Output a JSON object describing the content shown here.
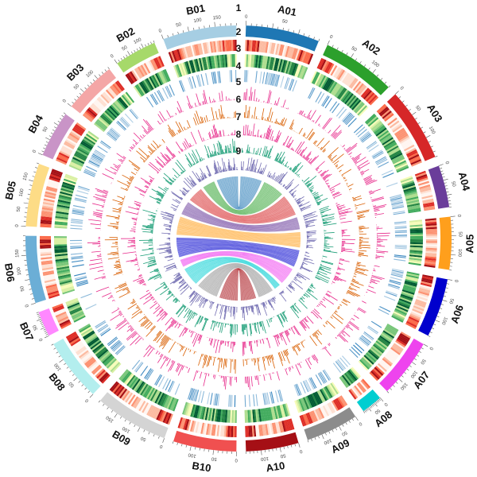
{
  "figure": {
    "type": "circos",
    "description_tracks": [
      "1",
      "2",
      "3",
      "4",
      "5",
      "6",
      "7",
      "8",
      "9"
    ]
  },
  "chromosomes": [
    {
      "id": "A01",
      "label": "A01",
      "size": 35,
      "color": "#1f77b4",
      "ticks": [
        0,
        50
      ]
    },
    {
      "id": "A02",
      "label": "A02",
      "size": 35,
      "color": "#2ca02c",
      "ticks": [
        0,
        50,
        100
      ]
    },
    {
      "id": "A03",
      "label": "A03",
      "size": 35,
      "color": "#d62728",
      "ticks": [
        0,
        50,
        100
      ]
    },
    {
      "id": "A04",
      "label": "A04",
      "size": 20,
      "color": "#6a3d9a",
      "ticks": [
        0,
        50
      ]
    },
    {
      "id": "A05",
      "label": "A05",
      "size": 25,
      "color": "#ff9f1c",
      "ticks": [
        0,
        50,
        100
      ]
    },
    {
      "id": "A06",
      "label": "A06",
      "size": 28,
      "color": "#0000cd",
      "ticks": [
        0,
        50,
        100
      ]
    },
    {
      "id": "A07",
      "label": "A07",
      "size": 28,
      "color": "#ee44ee",
      "ticks": [
        0,
        50,
        100,
        150
      ]
    },
    {
      "id": "A08",
      "label": "A08",
      "size": 10,
      "color": "#00ced1",
      "ticks": [
        0,
        50
      ]
    },
    {
      "id": "A09",
      "label": "A09",
      "size": 25,
      "color": "#8c8c8c",
      "ticks": [
        0,
        50,
        100
      ]
    },
    {
      "id": "A10",
      "label": "A10",
      "size": 25,
      "color": "#a50f15",
      "ticks": [
        0,
        50,
        100
      ]
    },
    {
      "id": "B10",
      "label": "B10",
      "size": 30,
      "color": "#f05050",
      "ticks": [
        0,
        50,
        100
      ]
    },
    {
      "id": "B09",
      "label": "B09",
      "size": 35,
      "color": "#d4d4d4",
      "ticks": [
        0,
        50,
        100,
        150
      ]
    },
    {
      "id": "B08",
      "label": "B08",
      "size": 30,
      "color": "#b3eeee",
      "ticks": [
        0,
        50,
        100
      ]
    },
    {
      "id": "B07",
      "label": "B07",
      "size": 12,
      "color": "#ff88ff",
      "ticks": [
        0,
        50
      ]
    },
    {
      "id": "B06",
      "label": "B06",
      "size": 32,
      "color": "#6baed6",
      "ticks": [
        0,
        50,
        100,
        150
      ]
    },
    {
      "id": "B05",
      "label": "B05",
      "size": 30,
      "color": "#fddc86",
      "ticks": [
        0,
        50,
        100,
        150
      ]
    },
    {
      "id": "B04",
      "label": "B04",
      "size": 22,
      "color": "#c994c7",
      "ticks": [
        0,
        50
      ]
    },
    {
      "id": "B03",
      "label": "B03",
      "size": 25,
      "color": "#f4a6a6",
      "ticks": [
        0,
        50,
        100
      ]
    },
    {
      "id": "B02",
      "label": "B02",
      "size": 20,
      "color": "#a6d96a",
      "ticks": [
        0,
        50,
        100
      ]
    },
    {
      "id": "B01",
      "label": "B01",
      "size": 35,
      "color": "#a6cee3",
      "ticks": [
        0,
        50,
        100,
        150
      ]
    }
  ],
  "tracks": [
    {
      "id": "2",
      "kind": "heatmap",
      "palette": "reds"
    },
    {
      "id": "3",
      "kind": "heatmap",
      "palette": "greens"
    },
    {
      "id": "4",
      "kind": "barcode",
      "color": "#3182bd"
    },
    {
      "id": "5",
      "kind": "histogram",
      "color": "#e7298a"
    },
    {
      "id": "6",
      "kind": "histogram",
      "color": "#d95f02"
    },
    {
      "id": "7",
      "kind": "histogram",
      "color": "#e7298a"
    },
    {
      "id": "8",
      "kind": "histogram",
      "color": "#1b9e77"
    },
    {
      "id": "9",
      "kind": "histogram",
      "color": "#7570b3"
    }
  ],
  "links": [
    {
      "from": "A01",
      "to": "B01",
      "color": "#1f77b4"
    },
    {
      "from": "A02",
      "to": "B02",
      "color": "#2ca02c"
    },
    {
      "from": "A03",
      "to": "B03",
      "color": "#d62728"
    },
    {
      "from": "A04",
      "to": "B04",
      "color": "#6a3d9a"
    },
    {
      "from": "A05",
      "to": "B05",
      "color": "#ff9f1c"
    },
    {
      "from": "A06",
      "to": "B06",
      "color": "#0000cd"
    },
    {
      "from": "A07",
      "to": "B07",
      "color": "#ee44ee"
    },
    {
      "from": "A08",
      "to": "B08",
      "color": "#00ced1"
    },
    {
      "from": "A09",
      "to": "B09",
      "color": "#8c8c8c"
    },
    {
      "from": "A10",
      "to": "B10",
      "color": "#a50f15"
    }
  ]
}
